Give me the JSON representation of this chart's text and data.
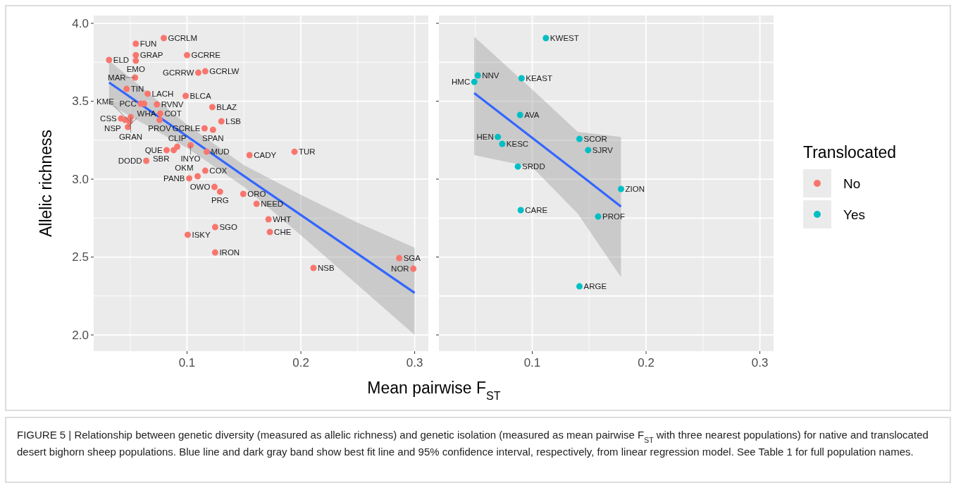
{
  "chart_data": [
    {
      "type": "scatter",
      "ylabel": "Allelic richness",
      "xlabel": "Mean pairwise F$_{ST}$",
      "xlim": [
        0.018,
        0.312
      ],
      "ylim": [
        1.896,
        4.05
      ],
      "xticks": [
        {
          "value": 0.05,
          "label": null
        },
        0.1,
        {
          "value": 0.15,
          "label": null
        },
        0.2,
        {
          "value": 0.25,
          "label": null
        },
        0.3
      ],
      "yticks": [
        {
          "value": 2,
          "label": "2.0"
        },
        {
          "value": 2.25,
          "label": null
        },
        2.5,
        {
          "value": 2.75,
          "label": null
        },
        {
          "value": 3,
          "label": "3.0"
        },
        {
          "value": 3.25,
          "label": null
        },
        3.5,
        {
          "value": 3.75,
          "label": null
        },
        {
          "value": 4,
          "label": "4.0"
        }
      ],
      "grid": true,
      "series": [
        {
          "name": "No",
          "color": "#f8766d",
          "x": [
            0.0315,
            0.055,
            0.0796,
            0.055,
            0.055,
            0.0543,
            0.1,
            0.1099,
            0.116,
            0.0469,
            0.0654,
            0.0988,
            0.0593,
            0.0623,
            0.0735,
            0.1222,
            0.0765,
            0.0759,
            0.042,
            0.0457,
            0.0505,
            0.0495,
            0.0481,
            0.1154,
            0.1302,
            0.1228,
            0.0914,
            0.1031,
            0.0883,
            0.0821,
            0.0642,
            0.1173,
            0.1549,
            0.1944,
            0.116,
            0.1019,
            0.1093,
            0.1241,
            0.129,
            0.1494,
            0.1611,
            0.1716,
            0.1728,
            0.1247,
            0.1006,
            0.1247,
            0.2111,
            0.2864,
            0.2988
          ],
          "values": [
            3.765,
            3.869,
            3.905,
            3.796,
            3.76,
            3.652,
            3.796,
            3.683,
            3.692,
            3.579,
            3.548,
            3.534,
            3.484,
            3.484,
            3.48,
            3.462,
            3.421,
            3.38,
            3.389,
            3.38,
            3.398,
            3.37,
            3.335,
            3.326,
            3.371,
            3.317,
            3.208,
            3.217,
            3.186,
            3.186,
            3.118,
            3.176,
            3.154,
            3.176,
            3.054,
            3.005,
            3.018,
            2.95,
            2.919,
            2.905,
            2.842,
            2.742,
            2.661,
            2.692,
            2.643,
            2.529,
            2.43,
            2.493,
            2.425
          ]
        },
        {
          "type": "line",
          "color": "#3366ff",
          "x": [
            0.0315,
            0.1,
            0.15,
            0.2,
            0.25,
            0.3
          ],
          "values": [
            3.62,
            3.275,
            3.02,
            2.77,
            2.52,
            2.27
          ],
          "lower": [
            3.48,
            3.2,
            2.95,
            2.64,
            2.32,
            2.0
          ],
          "upper": [
            3.76,
            3.35,
            3.09,
            2.9,
            2.72,
            2.56
          ]
        }
      ],
      "annotations": [
        {
          "text": "ELD",
          "x": 0.0315,
          "y": 3.765
        },
        {
          "text": "FUN",
          "x": 0.055,
          "y": 3.869
        },
        {
          "text": "GCRLM",
          "x": 0.0796,
          "y": 3.905
        },
        {
          "text": "GRAP",
          "x": 0.055,
          "y": 3.796
        },
        {
          "text": "EMO",
          "x": 0.055,
          "y": 3.76
        },
        {
          "text": "MAR",
          "x": 0.0543,
          "y": 3.652
        },
        {
          "text": "GCRRE",
          "x": 0.1,
          "y": 3.796
        },
        {
          "text": "GCRRW",
          "x": 0.1099,
          "y": 3.683
        },
        {
          "text": "GCRLW",
          "x": 0.116,
          "y": 3.692
        },
        {
          "text": "TIN",
          "x": 0.0469,
          "y": 3.579
        },
        {
          "text": "LACH",
          "x": 0.0654,
          "y": 3.548
        },
        {
          "text": "BLCA",
          "x": 0.0988,
          "y": 3.534
        },
        {
          "text": "PCC",
          "x": 0.0593,
          "y": 3.484
        },
        {
          "text": "RVNV",
          "x": 0.0735,
          "y": 3.48
        },
        {
          "text": "BLAZ",
          "x": 0.1222,
          "y": 3.462
        },
        {
          "text": "COT",
          "x": 0.0765,
          "y": 3.421
        },
        {
          "text": "PROV",
          "x": 0.0759,
          "y": 3.38
        },
        {
          "text": "CSS",
          "x": 0.042,
          "y": 3.389
        },
        {
          "text": "NSP",
          "x": 0.0457,
          "y": 3.38
        },
        {
          "text": "GRAN",
          "x": 0.0505,
          "y": 3.398
        },
        {
          "text": "KME",
          "x": 0.0495,
          "y": 3.37
        },
        {
          "text": "WHA",
          "x": 0.0481,
          "y": 3.335
        },
        {
          "text": "GCRLE",
          "x": 0.1154,
          "y": 3.326
        },
        {
          "text": "LSB",
          "x": 0.1302,
          "y": 3.371
        },
        {
          "text": "SPAN",
          "x": 0.1228,
          "y": 3.317
        },
        {
          "text": "CLIP",
          "x": 0.0914,
          "y": 3.208
        },
        {
          "text": "INYO",
          "x": 0.1031,
          "y": 3.217
        },
        {
          "text": "SBR",
          "x": 0.0883,
          "y": 3.186
        },
        {
          "text": "QUE",
          "x": 0.0821,
          "y": 3.186
        },
        {
          "text": "DODD",
          "x": 0.0642,
          "y": 3.118
        },
        {
          "text": "MUD",
          "x": 0.1173,
          "y": 3.176
        },
        {
          "text": "CADY",
          "x": 0.1549,
          "y": 3.154
        },
        {
          "text": "TUR",
          "x": 0.1944,
          "y": 3.176
        },
        {
          "text": "COX",
          "x": 0.116,
          "y": 3.054
        },
        {
          "text": "PANB",
          "x": 0.1019,
          "y": 3.005
        },
        {
          "text": "OKM",
          "x": 0.1093,
          "y": 3.018
        },
        {
          "text": "OWO",
          "x": 0.1241,
          "y": 2.95
        },
        {
          "text": "PRG",
          "x": 0.129,
          "y": 2.919
        },
        {
          "text": "ORO",
          "x": 0.1494,
          "y": 2.905
        },
        {
          "text": "NEED",
          "x": 0.1611,
          "y": 2.842
        },
        {
          "text": "WHT",
          "x": 0.1716,
          "y": 2.742
        },
        {
          "text": "CHE",
          "x": 0.1728,
          "y": 2.661
        },
        {
          "text": "SGO",
          "x": 0.1247,
          "y": 2.692
        },
        {
          "text": "ISKY",
          "x": 0.1006,
          "y": 2.643
        },
        {
          "text": "IRON",
          "x": 0.1247,
          "y": 2.529
        },
        {
          "text": "NSB",
          "x": 0.2111,
          "y": 2.43
        },
        {
          "text": "SGA",
          "x": 0.2864,
          "y": 2.493
        },
        {
          "text": "NOR",
          "x": 0.2988,
          "y": 2.425
        },
        "FIGURE 5 | Relationship between genetic diversity (measured as allelic richness) and genetic isolation (measured as mean pairwise F$_{ST}$ with three nearest populations) for native and translocated desert bighorn sheep populations. Blue line and dark gray band show best fit line and 95% confidence interval, respectively, from linear regression model. See Table 1 for full population names."
      ]
    },
    {
      "type": "scatter",
      "xlim": [
        0.018,
        0.312
      ],
      "ylim": [
        1.896,
        4.05
      ],
      "xticks": [
        {
          "value": 0.05,
          "label": null
        },
        0.1,
        {
          "value": 0.15,
          "label": null
        },
        0.2,
        {
          "value": 0.25,
          "label": null
        },
        0.3
      ],
      "yticks": [
        2,
        2.25,
        2.5,
        2.75,
        3,
        3.25,
        3.5,
        3.75,
        4
      ],
      "tick_labels": "x",
      "grid": true,
      "legend": "right",
      "legend_title": "Translocated",
      "series": [
        {
          "name": "Yes",
          "color": "#00bfc4",
          "x": [
            0.112,
            0.0522,
            0.0491,
            0.0906,
            0.0893,
            0.0698,
            0.0736,
            0.0874,
            0.1415,
            0.1491,
            0.178,
            0.1579,
            0.0899,
            0.1415
          ],
          "values": [
            3.905,
            3.665,
            3.624,
            3.647,
            3.412,
            3.271,
            3.226,
            3.081,
            3.258,
            3.186,
            2.937,
            2.76,
            2.801,
            2.312
          ]
        },
        {
          "type": "line",
          "color": "#3366ff",
          "x": [
            0.049,
            0.1,
            0.14,
            0.178
          ],
          "values": [
            3.552,
            3.265,
            3.04,
            2.824
          ],
          "lower": [
            3.154,
            3.077,
            2.778,
            2.371
          ],
          "upper": [
            3.914,
            3.575,
            3.303,
            3.271
          ]
        }
      ],
      "annotations": [
        {
          "text": "KWEST",
          "x": 0.112,
          "y": 3.905
        },
        {
          "text": "NNV",
          "x": 0.0522,
          "y": 3.665
        },
        {
          "text": "HMC",
          "x": 0.0491,
          "y": 3.624
        },
        {
          "text": "KEAST",
          "x": 0.0906,
          "y": 3.647
        },
        {
          "text": "AVA",
          "x": 0.0893,
          "y": 3.412
        },
        {
          "text": "HEN",
          "x": 0.0698,
          "y": 3.271
        },
        {
          "text": "KESC",
          "x": 0.0736,
          "y": 3.226
        },
        {
          "text": "SRDD",
          "x": 0.0874,
          "y": 3.081
        },
        {
          "text": "SCOR",
          "x": 0.1415,
          "y": 3.258
        },
        {
          "text": "SJRV",
          "x": 0.1491,
          "y": 3.186
        },
        {
          "text": "ZION",
          "x": 0.178,
          "y": 2.937
        },
        {
          "text": "PROF",
          "x": 0.1579,
          "y": 2.76
        },
        {
          "text": "CARE",
          "x": 0.0899,
          "y": 2.801
        },
        {
          "text": "ARGE",
          "x": 0.1415,
          "y": 2.312
        }
      ]
    }
  ]
}
